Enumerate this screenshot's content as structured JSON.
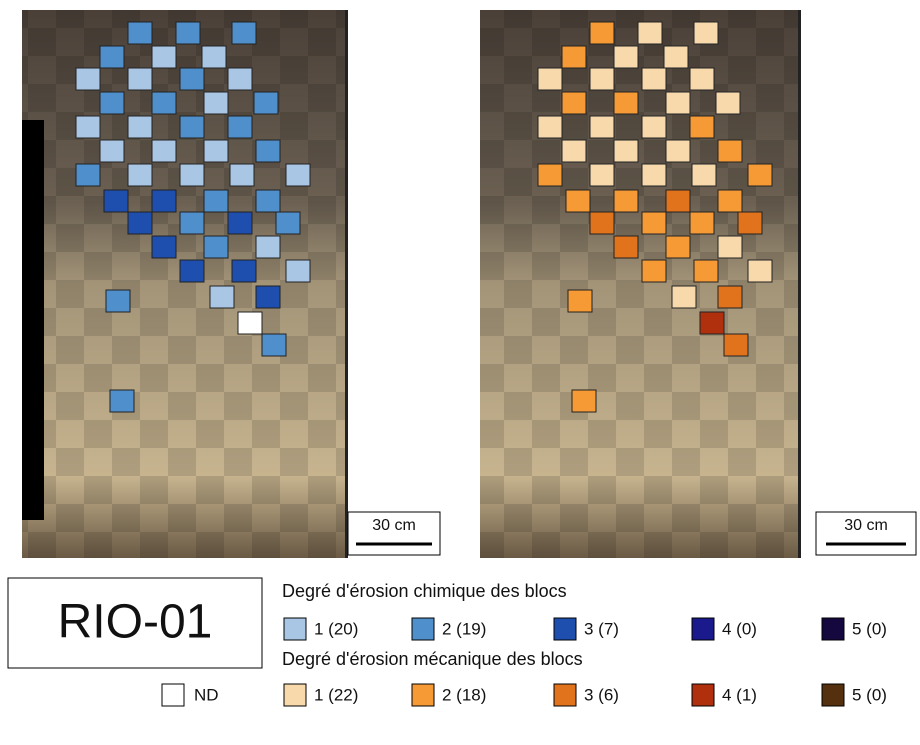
{
  "panels": [
    {
      "scale": "30 cm"
    },
    {
      "scale": "30 cm"
    }
  ],
  "site": "RIO-01",
  "legend": {
    "chemical": {
      "title": "Degré d'érosion chimique des blocs",
      "items": [
        {
          "label": "1 (20)",
          "color": "#a9c6e4"
        },
        {
          "label": "2 (19)",
          "color": "#4f8fcb"
        },
        {
          "label": "3 (7)",
          "color": "#1f4fae"
        },
        {
          "label": "4 (0)",
          "color": "#1a1a8c"
        },
        {
          "label": "5 (0)",
          "color": "#14083f"
        }
      ]
    },
    "mechanical": {
      "title": "Degré d'érosion mécanique des blocs",
      "nd": "ND",
      "items": [
        {
          "label": "1 (22)",
          "color": "#f8d9ac"
        },
        {
          "label": "2 (18)",
          "color": "#f59a34"
        },
        {
          "label": "3 (6)",
          "color": "#e0731c"
        },
        {
          "label": "4 (1)",
          "color": "#b0300e"
        },
        {
          "label": "5 (0)",
          "color": "#55300e"
        }
      ]
    }
  }
}
